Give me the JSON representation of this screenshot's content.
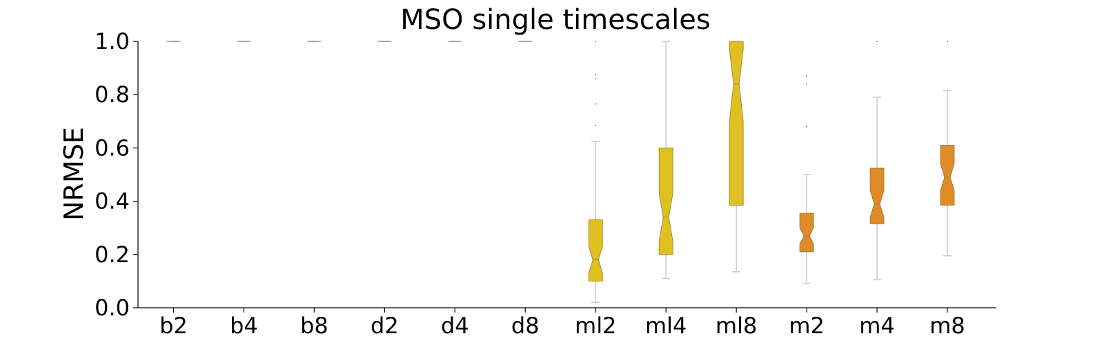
{
  "chart_data": {
    "type": "box",
    "title": "MSO single timescales",
    "xlabel": "",
    "ylabel": "NRMSE",
    "ylim": [
      0,
      1.0
    ],
    "yticks": [
      "0.0",
      "0.2",
      "0.4",
      "0.6",
      "0.8",
      "1.0"
    ],
    "categories": [
      "b2",
      "b4",
      "b8",
      "d2",
      "d4",
      "d8",
      "ml2",
      "ml4",
      "ml8",
      "m2",
      "m4",
      "m8"
    ],
    "boxes": [
      {
        "category": "b2",
        "whislo": 1.0,
        "q1": 1.0,
        "med": 1.0,
        "q3": 1.0,
        "whishi": 1.0,
        "notch_lo": 1.0,
        "notch_hi": 1.0,
        "fliers": [],
        "color": "#808080"
      },
      {
        "category": "b4",
        "whislo": 1.0,
        "q1": 1.0,
        "med": 1.0,
        "q3": 1.0,
        "whishi": 1.0,
        "notch_lo": 1.0,
        "notch_hi": 1.0,
        "fliers": [],
        "color": "#808080"
      },
      {
        "category": "b8",
        "whislo": 1.0,
        "q1": 1.0,
        "med": 1.0,
        "q3": 1.0,
        "whishi": 1.0,
        "notch_lo": 1.0,
        "notch_hi": 1.0,
        "fliers": [],
        "color": "#808080"
      },
      {
        "category": "d2",
        "whislo": 1.0,
        "q1": 1.0,
        "med": 1.0,
        "q3": 1.0,
        "whishi": 1.0,
        "notch_lo": 1.0,
        "notch_hi": 1.0,
        "fliers": [],
        "color": "#808080"
      },
      {
        "category": "d4",
        "whislo": 1.0,
        "q1": 1.0,
        "med": 1.0,
        "q3": 1.0,
        "whishi": 1.0,
        "notch_lo": 1.0,
        "notch_hi": 1.0,
        "fliers": [],
        "color": "#808080"
      },
      {
        "category": "d8",
        "whislo": 1.0,
        "q1": 1.0,
        "med": 1.0,
        "q3": 1.0,
        "whishi": 1.0,
        "notch_lo": 1.0,
        "notch_hi": 1.0,
        "fliers": [],
        "color": "#808080"
      },
      {
        "category": "ml2",
        "whislo": 0.02,
        "q1": 0.1,
        "med": 0.18,
        "q3": 0.33,
        "whishi": 0.625,
        "notch_lo": 0.13,
        "notch_hi": 0.23,
        "fliers": [
          0.685,
          0.765,
          0.86,
          0.875,
          1.0
        ],
        "color": "#e0c020"
      },
      {
        "category": "ml4",
        "whislo": 0.11,
        "q1": 0.2,
        "med": 0.34,
        "q3": 0.6,
        "whishi": 1.0,
        "notch_lo": 0.25,
        "notch_hi": 0.43,
        "fliers": [],
        "color": "#e0c020"
      },
      {
        "category": "ml8",
        "whislo": 0.135,
        "q1": 0.385,
        "med": 0.84,
        "q3": 1.0,
        "whishi": 1.0,
        "notch_lo": 0.7,
        "notch_hi": 0.97,
        "fliers": [],
        "color": "#e0c020"
      },
      {
        "category": "m2",
        "whislo": 0.09,
        "q1": 0.21,
        "med": 0.27,
        "q3": 0.355,
        "whishi": 0.5,
        "notch_lo": 0.24,
        "notch_hi": 0.3,
        "fliers": [
          0.68,
          0.84,
          0.87
        ],
        "color": "#e08a28"
      },
      {
        "category": "m4",
        "whislo": 0.105,
        "q1": 0.315,
        "med": 0.39,
        "q3": 0.525,
        "whishi": 0.79,
        "notch_lo": 0.34,
        "notch_hi": 0.44,
        "fliers": [
          1.0
        ],
        "color": "#e08a28"
      },
      {
        "category": "m8",
        "whislo": 0.195,
        "q1": 0.385,
        "med": 0.49,
        "q3": 0.61,
        "whishi": 0.815,
        "notch_lo": 0.44,
        "notch_hi": 0.54,
        "fliers": [
          1.0
        ],
        "color": "#e08a28"
      }
    ],
    "grid": false,
    "legend": "none"
  }
}
